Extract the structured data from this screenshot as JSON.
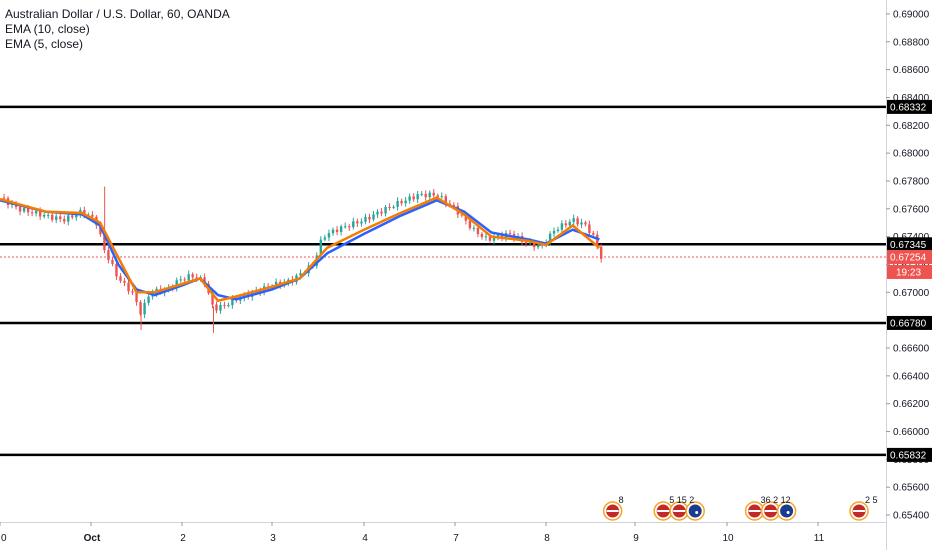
{
  "legend": {
    "title": "Australian Dollar / U.S. Dollar, 60, OANDA",
    "ema1": "EMA (10, close)",
    "ema2": "EMA (5, close)"
  },
  "colors": {
    "up": "#26a69a",
    "down": "#ef5350",
    "ema10": "#2962ff",
    "ema5": "#f57c00",
    "line": "#000000",
    "price": "#ef5350"
  },
  "chart_data": {
    "type": "line",
    "y_axis": {
      "min": 0.6535,
      "max": 0.691,
      "ticks": [
        "0.69000",
        "0.68800",
        "0.68600",
        "0.68400",
        "0.68200",
        "0.68000",
        "0.67800",
        "0.67600",
        "0.67400",
        "0.67200",
        "0.67000",
        "0.66800",
        "0.66600",
        "0.66400",
        "0.66200",
        "0.66000",
        "0.65800",
        "0.65600",
        "0.65400"
      ]
    },
    "x_axis": {
      "labels": [
        "0",
        "Oct",
        "2",
        "3",
        "4",
        "7",
        "8",
        "9",
        "10",
        "11"
      ]
    },
    "horizontal_lines": [
      {
        "label": "0.68332",
        "value": 0.68332
      },
      {
        "label": "0.67345",
        "value": 0.67345
      },
      {
        "label": "0.66780",
        "value": 0.6678
      },
      {
        "label": "0.65832",
        "value": 0.65832
      }
    ],
    "current_price": {
      "label": "0.67254",
      "value": 0.67254,
      "countdown": "19:23"
    },
    "price_series": [
      [
        0.0,
        0.6768
      ],
      [
        0.2,
        0.676
      ],
      [
        0.5,
        0.6755
      ],
      [
        0.7,
        0.6752
      ],
      [
        0.9,
        0.6758
      ],
      [
        1.05,
        0.6752
      ],
      [
        1.15,
        0.673
      ],
      [
        1.3,
        0.671
      ],
      [
        1.45,
        0.67
      ],
      [
        1.55,
        0.6685
      ],
      [
        1.65,
        0.67
      ],
      [
        1.85,
        0.6702
      ],
      [
        1.95,
        0.6708
      ],
      [
        2.1,
        0.6712
      ],
      [
        2.25,
        0.6708
      ],
      [
        2.35,
        0.6688
      ],
      [
        2.45,
        0.669
      ],
      [
        2.6,
        0.6695
      ],
      [
        2.8,
        0.67
      ],
      [
        3.0,
        0.6705
      ],
      [
        3.2,
        0.6708
      ],
      [
        3.45,
        0.672
      ],
      [
        3.55,
        0.674
      ],
      [
        3.7,
        0.6745
      ],
      [
        4.0,
        0.6752
      ],
      [
        4.3,
        0.6762
      ],
      [
        4.6,
        0.677
      ],
      [
        4.8,
        0.677
      ],
      [
        5.0,
        0.676
      ],
      [
        5.2,
        0.6745
      ],
      [
        5.35,
        0.6738
      ],
      [
        5.6,
        0.6742
      ],
      [
        5.8,
        0.6735
      ],
      [
        5.95,
        0.6733
      ],
      [
        6.1,
        0.6745
      ],
      [
        6.3,
        0.6752
      ],
      [
        6.45,
        0.6748
      ],
      [
        6.55,
        0.6738
      ],
      [
        6.62,
        0.6725
      ]
    ],
    "ema10": [
      [
        0.0,
        0.6766
      ],
      [
        0.5,
        0.6758
      ],
      [
        0.9,
        0.6756
      ],
      [
        1.1,
        0.6748
      ],
      [
        1.3,
        0.672
      ],
      [
        1.5,
        0.6702
      ],
      [
        1.7,
        0.6698
      ],
      [
        2.0,
        0.6705
      ],
      [
        2.2,
        0.671
      ],
      [
        2.4,
        0.6698
      ],
      [
        2.6,
        0.6695
      ],
      [
        3.0,
        0.6702
      ],
      [
        3.3,
        0.671
      ],
      [
        3.6,
        0.6728
      ],
      [
        4.0,
        0.6742
      ],
      [
        4.4,
        0.6755
      ],
      [
        4.8,
        0.6766
      ],
      [
        5.1,
        0.6758
      ],
      [
        5.4,
        0.6743
      ],
      [
        5.8,
        0.6738
      ],
      [
        6.0,
        0.6735
      ],
      [
        6.3,
        0.6745
      ],
      [
        6.6,
        0.6738
      ]
    ],
    "ema5": [
      [
        0.0,
        0.6767
      ],
      [
        0.5,
        0.6758
      ],
      [
        0.9,
        0.6757
      ],
      [
        1.1,
        0.675
      ],
      [
        1.3,
        0.6725
      ],
      [
        1.5,
        0.67
      ],
      [
        1.7,
        0.67
      ],
      [
        2.0,
        0.6706
      ],
      [
        2.2,
        0.671
      ],
      [
        2.4,
        0.6694
      ],
      [
        2.6,
        0.6697
      ],
      [
        3.0,
        0.6704
      ],
      [
        3.3,
        0.671
      ],
      [
        3.6,
        0.6732
      ],
      [
        4.0,
        0.6745
      ],
      [
        4.4,
        0.6757
      ],
      [
        4.8,
        0.6768
      ],
      [
        5.1,
        0.6756
      ],
      [
        5.4,
        0.674
      ],
      [
        5.8,
        0.6737
      ],
      [
        6.0,
        0.6734
      ],
      [
        6.3,
        0.6748
      ],
      [
        6.6,
        0.6732
      ]
    ],
    "events": [
      {
        "text": "8",
        "flags": [
          "us"
        ],
        "day": 6.85
      },
      {
        "text": "5 15 2",
        "flags": [
          "us",
          "us",
          "au"
        ],
        "day": 7.6
      },
      {
        "text": "36 2 12",
        "flags": [
          "us",
          "us",
          "au"
        ],
        "day": 8.6
      },
      {
        "text": "2 5",
        "flags": [
          "us"
        ],
        "day": 9.55
      }
    ]
  }
}
